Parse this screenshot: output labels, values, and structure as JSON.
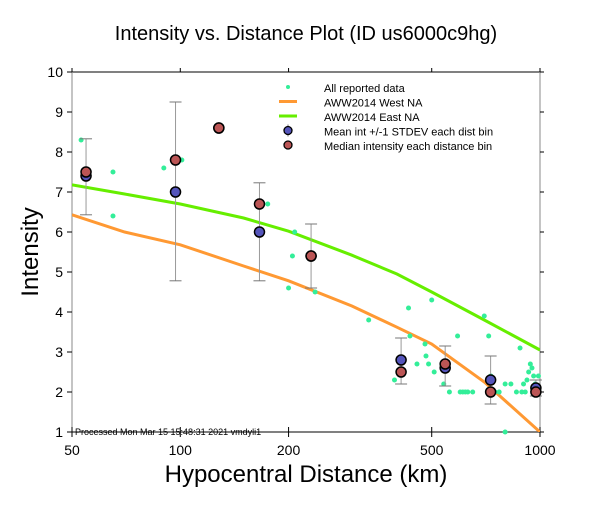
{
  "chart_data": {
    "type": "scatter",
    "title": "Intensity vs. Distance Plot (ID us6000c9hg)",
    "xlabel": "Hypocentral Distance (km)",
    "ylabel": "Intensity",
    "xscale": "log",
    "xlim": [
      50,
      1000
    ],
    "ylim": [
      1,
      10
    ],
    "xticks": [
      50,
      100,
      200,
      500,
      1000
    ],
    "yticks": [
      1,
      2,
      3,
      4,
      5,
      6,
      7,
      8,
      9,
      10
    ],
    "footer": "Processed Mon Mar 15 15:48:31 2021 vmdyli1",
    "legend_position": "top-right",
    "legend": [
      {
        "label": "All reported data",
        "kind": "point",
        "color": "#33ee99"
      },
      {
        "label": "AWW2014 West NA",
        "kind": "line",
        "color": "#ff9933"
      },
      {
        "label": "AWW2014 East NA",
        "kind": "line",
        "color": "#66ee00"
      },
      {
        "label": "Mean int +/-1 STDEV each dist bin",
        "kind": "marker-err",
        "color": "#5555bb"
      },
      {
        "label": "Median intensity each distance bin",
        "kind": "marker",
        "color": "#bb5555"
      }
    ],
    "series": [
      {
        "name": "AWW2014 West NA",
        "kind": "line",
        "color": "#ff9933",
        "x": [
          50,
          70,
          100,
          150,
          200,
          300,
          400,
          500,
          700,
          1000
        ],
        "y": [
          6.43,
          6.0,
          5.68,
          5.15,
          4.78,
          4.15,
          3.62,
          3.2,
          2.25,
          1.0
        ]
      },
      {
        "name": "AWW2014 East NA",
        "kind": "line",
        "color": "#66ee00",
        "x": [
          50,
          70,
          100,
          150,
          200,
          300,
          400,
          500,
          700,
          1000
        ],
        "y": [
          7.18,
          6.95,
          6.7,
          6.35,
          6.02,
          5.42,
          4.95,
          4.5,
          3.8,
          3.05
        ]
      },
      {
        "name": "All reported data",
        "kind": "points",
        "color": "#33ee99",
        "x": [
          53,
          65,
          65,
          90,
          101,
          175,
          200,
          205,
          208,
          237,
          334,
          394,
          431,
          435,
          455,
          479,
          482,
          490,
          500,
          508,
          540,
          560,
          590,
          600,
          610,
          620,
          630,
          650,
          700,
          720,
          730,
          740,
          750,
          770,
          800,
          800,
          830,
          860,
          880,
          890,
          900,
          910,
          920,
          930,
          940,
          950,
          960,
          970,
          980,
          990
        ],
        "y": [
          8.3,
          7.5,
          6.4,
          7.6,
          7.8,
          6.7,
          4.6,
          5.4,
          6.0,
          4.5,
          3.8,
          2.3,
          4.1,
          3.4,
          2.7,
          3.2,
          2.9,
          2.7,
          4.3,
          2.5,
          2.2,
          2.0,
          3.4,
          2.0,
          2.0,
          2.0,
          2.0,
          2.0,
          3.9,
          3.4,
          2.4,
          2.0,
          2.0,
          2.0,
          2.2,
          1.0,
          2.2,
          2.0,
          3.1,
          2.0,
          2.2,
          2.0,
          2.3,
          2.5,
          2.7,
          2.6,
          2.4,
          2.2,
          2.0,
          2.4
        ]
      },
      {
        "name": "Mean int +/-1 STDEV each dist bin",
        "kind": "errorbar",
        "color": "#5555bb",
        "x": [
          54.7,
          97,
          128,
          166,
          231,
          411,
          545,
          729,
          974
        ],
        "y": [
          7.4,
          7.0,
          8.6,
          6.0,
          5.4,
          2.8,
          2.6,
          2.3,
          2.1
        ],
        "err_low": [
          6.43,
          4.78,
          8.6,
          4.78,
          4.6,
          2.2,
          2.15,
          1.7,
          1.9
        ],
        "err_high": [
          8.33,
          9.25,
          8.6,
          7.23,
          6.2,
          3.35,
          3.15,
          2.9,
          2.3
        ]
      },
      {
        "name": "Median intensity each distance bin",
        "kind": "markers",
        "color": "#bb5555",
        "x": [
          54.7,
          97,
          128,
          166,
          231,
          411,
          545,
          729,
          974
        ],
        "y": [
          7.5,
          7.8,
          8.6,
          6.7,
          5.4,
          2.5,
          2.7,
          2.0,
          2.0
        ]
      }
    ]
  }
}
